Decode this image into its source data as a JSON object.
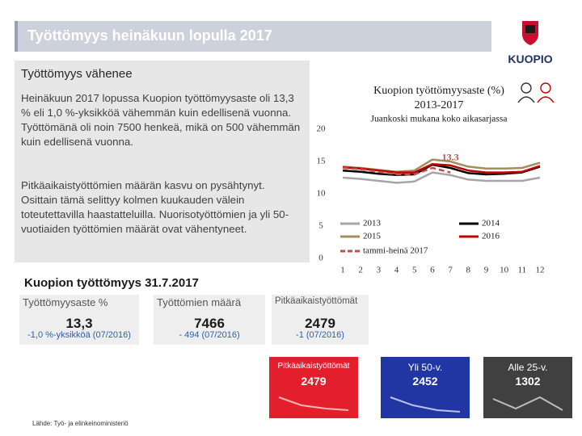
{
  "header": {
    "title": "Työttömyys heinäkuun lopulla 2017"
  },
  "logo": {
    "text": "KUOPIO"
  },
  "left": {
    "heading": "Työttömyys vähenee",
    "paragraphs": [
      "Heinäkuun 2017 lopussa Kuopion työttömyysaste oli 13,3 % eli 1,0 %-yksikköä vähemmän kuin edellisenä vuonna. Työttömänä oli noin 7500 henkeä, mikä on 500 vähemmän kuin edellisenä vuonna.",
      "Pitkäaikaistyöttömien määrän kasvu on pysähtynyt. Osittain tämä selittyy kolmen kuukauden välein toteutettavilla haastatteluilla. Nuorisotyöttömien ja yli 50-vuotiaiden työttömien määrät ovat vähentyneet."
    ]
  },
  "chart_data": {
    "type": "line",
    "title": [
      "Kuopion työttömyysaste (%)",
      "2013-2017"
    ],
    "subtitle": "Juankoski mukana koko aikasarjassa",
    "annotation": "13.3",
    "categories": [
      1,
      2,
      3,
      4,
      5,
      6,
      7,
      8,
      9,
      10,
      11,
      12
    ],
    "ylim": [
      0,
      20
    ],
    "yticks": [
      0,
      5,
      10,
      15,
      20
    ],
    "series": [
      {
        "name": "2013",
        "color": "#a6a6a6",
        "values": [
          12.5,
          12.3,
          12.0,
          11.7,
          11.9,
          13.3,
          12.9,
          12.2,
          12.0,
          12.0,
          12.0,
          12.5
        ]
      },
      {
        "name": "2014",
        "color": "#000000",
        "values": [
          13.6,
          13.4,
          13.1,
          12.9,
          13.0,
          14.5,
          14.0,
          13.2,
          13.0,
          13.1,
          13.3,
          14.2
        ]
      },
      {
        "name": "2015",
        "color": "#a38d5c",
        "values": [
          14.2,
          14.0,
          13.7,
          13.4,
          13.6,
          15.3,
          15.0,
          14.2,
          13.9,
          13.9,
          14.0,
          14.8
        ]
      },
      {
        "name": "2016",
        "color": "#c00000",
        "values": [
          14.1,
          13.9,
          13.6,
          13.3,
          13.3,
          14.6,
          14.4,
          13.6,
          13.3,
          13.3,
          13.4,
          14.3
        ]
      },
      {
        "name": "tammi-heinä 2017",
        "color": "#c0504d",
        "dashed": true,
        "values": [
          14.0,
          13.8,
          13.4,
          13.0,
          13.0,
          14.0,
          13.3,
          null,
          null,
          null,
          null,
          null
        ]
      }
    ]
  },
  "summary": {
    "heading": "Kuopion työttömyys 31.7.2017",
    "cards": [
      {
        "label": "Työttömyysaste %",
        "value": "13,3",
        "change": "-1,0 %-yksikköä (07/2016)"
      },
      {
        "label": "Työttömien määrä",
        "value": "7466",
        "change": "- 494 (07/2016)"
      },
      {
        "label": "Pitkäaikaistyöttömät",
        "value": "2479",
        "change": "-1 (07/2016)"
      }
    ]
  },
  "tiles": [
    {
      "label": "Pitkäaikaistyöttömät",
      "value": "2479"
    },
    {
      "label": "Yli 50-v.",
      "value": "2452"
    },
    {
      "label": "Alle 25-v.",
      "value": "1302"
    }
  ],
  "source": "Lähde: Työ- ja elinkeinoministeriö"
}
